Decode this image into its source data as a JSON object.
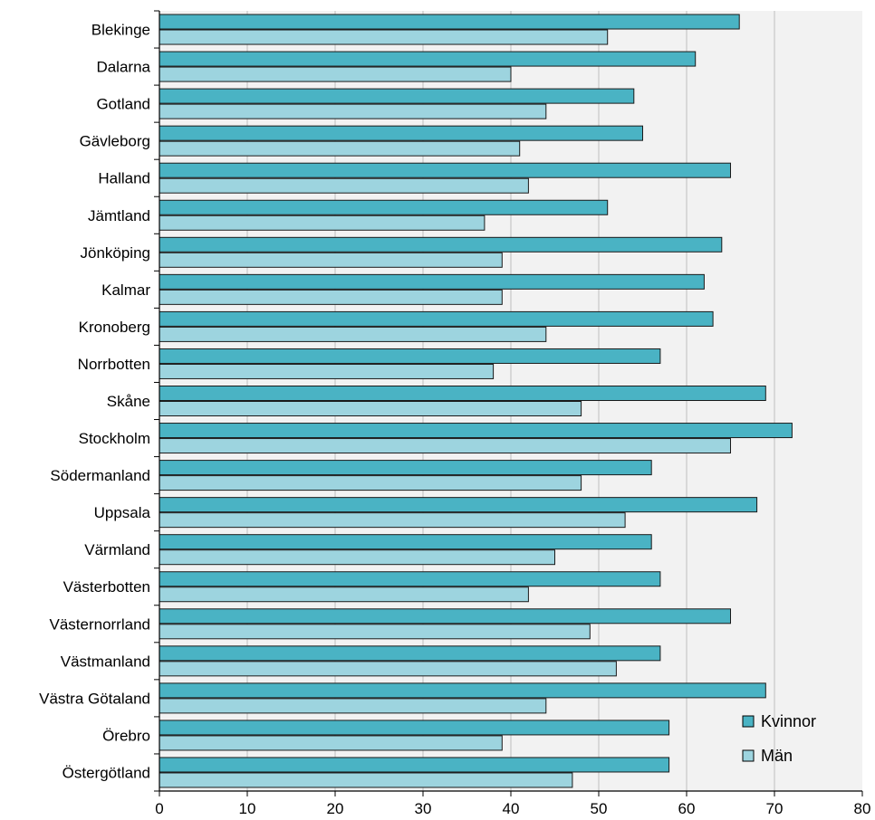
{
  "chart_data": {
    "type": "bar",
    "orientation": "horizontal",
    "categories": [
      "Blekinge",
      "Dalarna",
      "Gotland",
      "Gävleborg",
      "Halland",
      "Jämtland",
      "Jönköping",
      "Kalmar",
      "Kronoberg",
      "Norrbotten",
      "Skåne",
      "Stockholm",
      "Södermanland",
      "Uppsala",
      "Värmland",
      "Västerbotten",
      "Västernorrland",
      "Västmanland",
      "Västra Götaland",
      "Örebro",
      "Östergötland"
    ],
    "series": [
      {
        "name": "Kvinnor",
        "color": "#4ab3c4",
        "values": [
          66,
          61,
          54,
          55,
          65,
          51,
          64,
          62,
          63,
          57,
          69,
          72,
          56,
          68,
          56,
          57,
          65,
          57,
          69,
          58,
          58
        ]
      },
      {
        "name": "Män",
        "color": "#9dd4df",
        "values": [
          51,
          40,
          44,
          41,
          42,
          37,
          39,
          39,
          44,
          38,
          48,
          65,
          48,
          53,
          45,
          42,
          49,
          52,
          44,
          39,
          47
        ]
      }
    ],
    "xlim": [
      0,
      80
    ],
    "xticks": [
      "0",
      "10",
      "20",
      "30",
      "40",
      "50",
      "60",
      "70",
      "80"
    ],
    "grid": true,
    "legend_position": "bottom-right",
    "title": "",
    "xlabel": "",
    "ylabel": ""
  }
}
